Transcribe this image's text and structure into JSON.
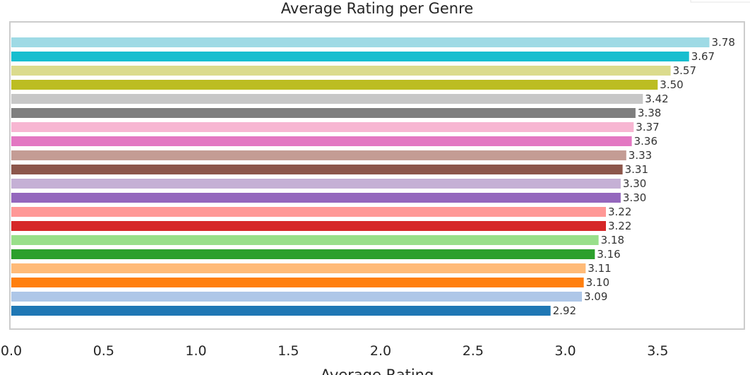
{
  "chart_data": {
    "type": "bar",
    "orientation": "horizontal",
    "title": "Average Rating per Genre",
    "xlabel": "Average Rating",
    "ylabel": "",
    "xlim": [
      0,
      3.97
    ],
    "x_ticks": [
      0.0,
      0.5,
      1.0,
      1.5,
      2.0,
      2.5,
      3.0,
      3.5
    ],
    "x_tick_labels": [
      "0.0",
      "0.5",
      "1.0",
      "1.5",
      "2.0",
      "2.5",
      "3.0",
      "3.5"
    ],
    "grid": false,
    "values_top_to_bottom": [
      3.78,
      3.67,
      3.57,
      3.5,
      3.42,
      3.38,
      3.37,
      3.36,
      3.33,
      3.31,
      3.3,
      3.3,
      3.22,
      3.22,
      3.18,
      3.16,
      3.11,
      3.1,
      3.09,
      2.92
    ],
    "value_labels": [
      "3.78",
      "3.67",
      "3.57",
      "3.50",
      "3.42",
      "3.38",
      "3.37",
      "3.36",
      "3.33",
      "3.31",
      "3.30",
      "3.30",
      "3.22",
      "3.22",
      "3.18",
      "3.16",
      "3.11",
      "3.10",
      "3.09",
      "2.92"
    ],
    "colors_top_to_bottom": [
      "#9edae5",
      "#17becf",
      "#dbdb8d",
      "#bcbd22",
      "#c7c7c7",
      "#7f7f7f",
      "#f7b6d2",
      "#e377c2",
      "#c49c94",
      "#8c564b",
      "#c5b0d5",
      "#9467bd",
      "#ff9896",
      "#d62728",
      "#98df8a",
      "#2ca02c",
      "#ffbb78",
      "#ff7f0e",
      "#aec7e8",
      "#1f77b4"
    ]
  }
}
